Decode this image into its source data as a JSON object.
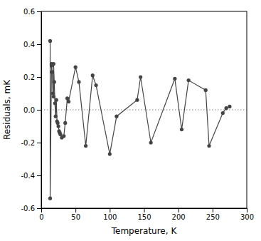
{
  "chart_data": {
    "type": "line",
    "xlabel": "Temperature, K",
    "ylabel": "Residuals, mK",
    "x": [
      13,
      13,
      15,
      15,
      16,
      17,
      18,
      18,
      19,
      20,
      21,
      22,
      23,
      24,
      25,
      26,
      27,
      28,
      30,
      33,
      35,
      38,
      40,
      50,
      55,
      65,
      75,
      80,
      100,
      110,
      140,
      145,
      160,
      195,
      205,
      215,
      240,
      245,
      265,
      270,
      275
    ],
    "series": [
      {
        "color": "#444444",
        "marker": "circle",
        "values": [
          0.42,
          -0.54,
          0.27,
          0.28,
          0.23,
          0.1,
          0.08,
          0.28,
          0.17,
          0.04,
          -0.04,
          0.06,
          -0.07,
          -0.08,
          -0.1,
          -0.13,
          -0.14,
          -0.15,
          -0.17,
          -0.16,
          -0.08,
          0.07,
          0.05,
          0.26,
          0.17,
          -0.22,
          0.21,
          0.15,
          -0.27,
          -0.04,
          0.06,
          0.2,
          -0.2,
          0.19,
          -0.12,
          0.18,
          0.12,
          -0.22,
          -0.02,
          0.01,
          0.02
        ]
      }
    ],
    "xlim": [
      0,
      300
    ],
    "ylim": [
      -0.6,
      0.6
    ],
    "xticks": [
      0,
      50,
      100,
      150,
      200,
      250,
      300
    ],
    "yticks": [
      -0.6,
      -0.4,
      -0.2,
      {
        "value": 0.0,
        "label": "0.0"
      },
      0.2,
      0.4,
      0.6
    ],
    "reference_line": {
      "value": 0.0,
      "color": "#888888",
      "line_style": "dotted"
    },
    "grid": false
  }
}
